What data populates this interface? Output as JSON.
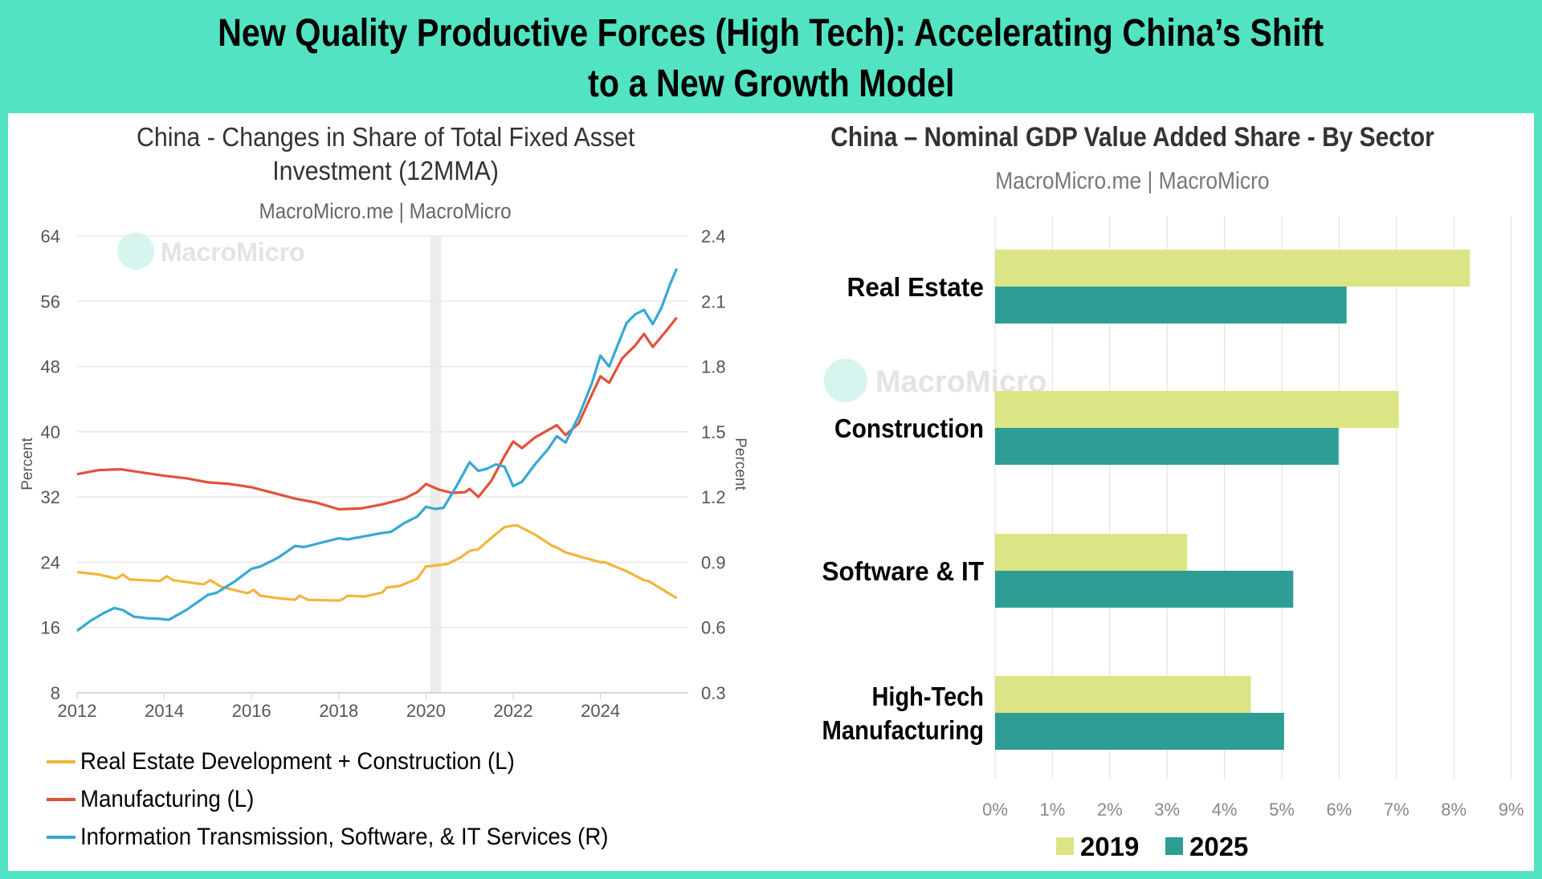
{
  "header": {
    "title_line1": "New Quality Productive Forces (High Tech): Accelerating China’s Shift",
    "title_line2": "to a New Growth Model"
  },
  "colors": {
    "background": "#52e3c2",
    "yellow": "#f2b53c",
    "red": "#e0533a",
    "blue": "#35a9d6",
    "bar2019": "#dce585",
    "bar2025": "#2e9e94"
  },
  "chart_data": [
    {
      "type": "line",
      "title_line1": "China - Changes in Share of Total Fixed Asset",
      "title_line2": "Investment (12MMA)",
      "subtitle": "MacroMicro.me | MacroMicro",
      "watermark": "MacroMicro",
      "ylabel_left": "Percent",
      "ylabel_right": "Percent",
      "ylim_left": [
        8,
        64
      ],
      "ylim_right": [
        0.3,
        2.4
      ],
      "yticks_left": [
        "64",
        "56",
        "48",
        "40",
        "32",
        "24",
        "16",
        "8"
      ],
      "yticks_right": [
        "2.4",
        "2.1",
        "1.8",
        "1.5",
        "1.2",
        "0.9",
        "0.6",
        "0.3"
      ],
      "xlim": [
        2012,
        2025.9
      ],
      "xticks": [
        "2012",
        "2014",
        "2016",
        "2018",
        "2020",
        "2022",
        "2024"
      ],
      "shaded_region": [
        2020.1,
        2020.35
      ],
      "series": [
        {
          "name": "Real Estate Development + Construction (L)",
          "axis": "left",
          "color": "#f2b53c",
          "x": [
            2012,
            2012.5,
            2012.9,
            2013.05,
            2013.2,
            2013.9,
            2014.05,
            2014.2,
            2014.9,
            2015.05,
            2015.3,
            2015.9,
            2016.05,
            2016.2,
            2016.6,
            2017,
            2017.1,
            2017.3,
            2018,
            2018.1,
            2018.2,
            2018.6,
            2019,
            2019.1,
            2019.4,
            2019.8,
            2020,
            2020.05,
            2020.5,
            2020.8,
            2021,
            2021.2,
            2021.5,
            2021.8,
            2022,
            2022.1,
            2022.5,
            2022.9,
            2023,
            2023.2,
            2023.8,
            2024,
            2024.1,
            2024.6,
            2025,
            2025.1,
            2025.75
          ],
          "y": [
            22.8,
            22.5,
            22.0,
            22.5,
            21.9,
            21.7,
            22.3,
            21.8,
            21.3,
            21.8,
            21.0,
            20.2,
            20.6,
            19.9,
            19.6,
            19.4,
            19.9,
            19.4,
            19.3,
            19.5,
            19.9,
            19.8,
            20.3,
            20.9,
            21.1,
            22.0,
            23.5,
            23.5,
            23.8,
            24.6,
            25.4,
            25.6,
            27.0,
            28.3,
            28.5,
            28.5,
            27.4,
            26.0,
            25.8,
            25.2,
            24.3,
            24.0,
            24.0,
            22.9,
            21.8,
            21.7,
            19.6
          ]
        },
        {
          "name": "Manufacturing (L)",
          "axis": "left",
          "color": "#e0533a",
          "x": [
            2012,
            2012.5,
            2013,
            2013.5,
            2014,
            2014.5,
            2015,
            2015.5,
            2016,
            2016.5,
            2017,
            2017.5,
            2018,
            2018.5,
            2019,
            2019.5,
            2019.8,
            2020,
            2020.3,
            2020.6,
            2020.9,
            2021,
            2021.2,
            2021.5,
            2021.8,
            2022,
            2022.2,
            2022.5,
            2022.8,
            2023,
            2023.2,
            2023.5,
            2023.8,
            2024,
            2024.2,
            2024.5,
            2024.8,
            2025,
            2025.2,
            2025.5,
            2025.75
          ],
          "y": [
            34.8,
            35.3,
            35.4,
            35.0,
            34.6,
            34.3,
            33.8,
            33.6,
            33.2,
            32.5,
            31.8,
            31.3,
            30.5,
            30.6,
            31.1,
            31.8,
            32.6,
            33.6,
            32.9,
            32.5,
            32.6,
            33.0,
            32.0,
            34.0,
            37.0,
            38.8,
            38.0,
            39.3,
            40.2,
            40.8,
            39.6,
            41.0,
            44.5,
            46.8,
            46.0,
            49.0,
            50.6,
            52.0,
            50.4,
            52.3,
            54.0
          ]
        },
        {
          "name": "Information Transmission, Software, & IT Services (R)",
          "axis": "right",
          "color": "#35a9d6",
          "x": [
            2012,
            2012.3,
            2012.6,
            2012.85,
            2013.05,
            2013.3,
            2013.6,
            2013.9,
            2014.1,
            2014.5,
            2015,
            2015.2,
            2015.6,
            2016,
            2016.2,
            2016.6,
            2017,
            2017.2,
            2017.6,
            2018,
            2018.2,
            2018.6,
            2019,
            2019.2,
            2019.5,
            2019.8,
            2020,
            2020.2,
            2020.4,
            2020.7,
            2021,
            2021.2,
            2021.4,
            2021.6,
            2021.8,
            2022,
            2022.2,
            2022.5,
            2022.8,
            2023,
            2023.2,
            2023.5,
            2023.8,
            2024,
            2024.2,
            2024.4,
            2024.6,
            2024.8,
            2025,
            2025.2,
            2025.4,
            2025.6,
            2025.75
          ],
          "y": [
            0.585,
            0.63,
            0.665,
            0.69,
            0.68,
            0.65,
            0.643,
            0.64,
            0.635,
            0.68,
            0.75,
            0.76,
            0.81,
            0.87,
            0.88,
            0.92,
            0.975,
            0.97,
            0.99,
            1.01,
            1.005,
            1.02,
            1.035,
            1.04,
            1.08,
            1.11,
            1.155,
            1.145,
            1.15,
            1.25,
            1.36,
            1.32,
            1.33,
            1.35,
            1.34,
            1.25,
            1.27,
            1.35,
            1.42,
            1.48,
            1.45,
            1.57,
            1.72,
            1.85,
            1.8,
            1.9,
            2.0,
            2.04,
            2.06,
            1.995,
            2.07,
            2.18,
            2.25
          ]
        }
      ]
    },
    {
      "type": "bar",
      "orientation": "horizontal",
      "title": "China – Nominal GDP Value Added Share - By Sector",
      "subtitle": "MacroMicro.me | MacroMicro",
      "watermark": "MacroMicro",
      "categories": [
        "Real Estate",
        "Construction",
        "Software & IT",
        "High-Tech Manufacturing"
      ],
      "category_lines": [
        [
          "Real Estate"
        ],
        [
          "Construction"
        ],
        [
          "Software & IT"
        ],
        [
          "High-Tech",
          "Manufacturing"
        ]
      ],
      "xlim": [
        0,
        9
      ],
      "xticks": [
        "0%",
        "1%",
        "2%",
        "3%",
        "4%",
        "5%",
        "6%",
        "7%",
        "8%",
        "9%"
      ],
      "legend_position": "bottom",
      "series": [
        {
          "name": "2019",
          "color": "#dce585",
          "values": [
            8.28,
            7.04,
            3.35,
            4.46
          ]
        },
        {
          "name": "2025",
          "color": "#2e9e94",
          "values": [
            6.13,
            5.99,
            5.2,
            5.04
          ]
        }
      ]
    }
  ]
}
